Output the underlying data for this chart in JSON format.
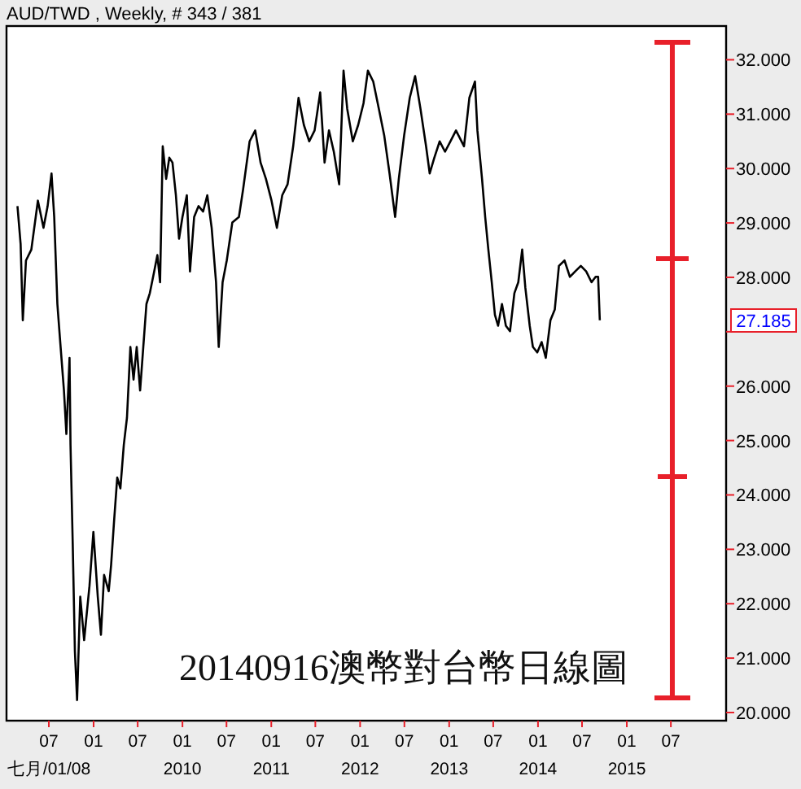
{
  "chart_data": {
    "type": "line",
    "title": "AUD/TWD , Weekly, # 343 / 381",
    "annotations": [
      "20140916澳幣對台幣日線圖",
      "27.185"
    ],
    "xlim": [
      "2008-01-09",
      "2016-02-13"
    ],
    "xticks": [
      {
        "value": "2008-07-01",
        "label": "07\n七月/01/08"
      },
      {
        "value": "2009-01-01",
        "label": "01"
      },
      {
        "value": "2009-07-01",
        "label": "07"
      },
      {
        "value": "2010-01-01",
        "label": "01\n2010"
      },
      {
        "value": "2010-07-01",
        "label": "07"
      },
      {
        "value": "2011-01-01",
        "label": "01\n2011"
      },
      {
        "value": "2011-07-01",
        "label": "07"
      },
      {
        "value": "2012-01-01",
        "label": "01\n2012"
      },
      {
        "value": "2012-07-01",
        "label": "07"
      },
      {
        "value": "2013-01-01",
        "label": "01\n2013"
      },
      {
        "value": "2013-07-01",
        "label": "07"
      },
      {
        "value": "2014-01-01",
        "label": "01\n2014"
      },
      {
        "value": "2014-07-01",
        "label": "07"
      },
      {
        "value": "2015-01-01",
        "label": "01\n2015"
      },
      {
        "value": "2015-07-01",
        "label": "07"
      }
    ],
    "ylim": [
      19.85,
      32.62
    ],
    "yticks": [
      {
        "value": 20,
        "label": "20.000"
      },
      {
        "value": 21,
        "label": "21.000"
      },
      {
        "value": 22,
        "label": "22.000"
      },
      {
        "value": 23,
        "label": "23.000"
      },
      {
        "value": 24,
        "label": "24.000"
      },
      {
        "value": 25,
        "label": "25.000"
      },
      {
        "value": 26,
        "label": "26.000"
      },
      {
        "value": 27,
        "label": null
      },
      {
        "value": 28,
        "label": "28.000"
      },
      {
        "value": 29,
        "label": "29.000"
      },
      {
        "value": 30,
        "label": "30.000"
      },
      {
        "value": 31,
        "label": "31.000"
      },
      {
        "value": 32,
        "label": "32.000"
      }
    ],
    "series": [
      {
        "type": "line",
        "color": "#e8202a",
        "x": [
          "2015-07-07",
          "2015-07-07",
          "2015-07-07",
          "2015-07-07"
        ],
        "values": [
          20.26,
          24.32,
          28.33,
          32.31
        ]
      },
      {
        "color": "#000000",
        "x": [
          "2008-02-23",
          "2008-03-07",
          "2008-03-16",
          "2008-03-29",
          "2008-04-20",
          "2008-05-17",
          "2008-06-09",
          "2008-06-26",
          "2008-07-12",
          "2008-07-23",
          "2008-08-05",
          "2008-08-15",
          "2008-09-01",
          "2008-09-11",
          "2008-09-24",
          "2008-09-28",
          "2008-10-07",
          "2008-10-16",
          "2008-10-25",
          "2008-11-07",
          "2008-11-23",
          "2008-12-15",
          "2008-12-31",
          "2009-01-18",
          "2009-01-31",
          "2009-02-13",
          "2009-03-04",
          "2009-03-14",
          "2009-03-26",
          "2009-04-08",
          "2009-04-21",
          "2009-05-05",
          "2009-05-18",
          "2009-06-01",
          "2009-06-14",
          "2009-06-27",
          "2009-07-11",
          "2009-07-24",
          "2009-08-06",
          "2009-08-20",
          "2009-09-07",
          "2009-09-20",
          "2009-10-01",
          "2009-10-12",
          "2009-10-26",
          "2009-11-08",
          "2009-11-21",
          "2009-12-05",
          "2009-12-18",
          "2010-01-01",
          "2010-01-19",
          "2010-02-01",
          "2010-02-18",
          "2010-03-08",
          "2010-03-27",
          "2010-04-13",
          "2010-05-01",
          "2010-05-19",
          "2010-05-30",
          "2010-06-15",
          "2010-07-02",
          "2010-07-25",
          "2010-08-21",
          "2010-09-07",
          "2010-10-04",
          "2010-10-27",
          "2010-11-18",
          "2010-12-10",
          "2011-01-02",
          "2011-01-24",
          "2011-02-15",
          "2011-03-09",
          "2011-04-01",
          "2011-04-23",
          "2011-05-15",
          "2011-06-06",
          "2011-06-28",
          "2011-07-21",
          "2011-08-08",
          "2011-08-26",
          "2011-09-15",
          "2011-10-07",
          "2011-10-25",
          "2011-11-09",
          "2011-12-02",
          "2011-12-24",
          "2012-01-15",
          "2012-02-02",
          "2012-02-24",
          "2012-03-18",
          "2012-04-09",
          "2012-05-01",
          "2012-05-24",
          "2012-06-08",
          "2012-06-30",
          "2012-07-23",
          "2012-08-14",
          "2012-09-05",
          "2012-09-28",
          "2012-10-13",
          "2012-11-01",
          "2012-11-23",
          "2012-12-15",
          "2013-01-06",
          "2013-01-29",
          "2013-03-03",
          "2013-03-25",
          "2013-04-17",
          "2013-04-27",
          "2013-05-16",
          "2013-05-29",
          "2013-06-11",
          "2013-06-25",
          "2013-07-08",
          "2013-07-21",
          "2013-08-06",
          "2013-08-22",
          "2013-09-08",
          "2013-09-26",
          "2013-10-12",
          "2013-10-28",
          "2013-11-10",
          "2013-11-28",
          "2013-12-11",
          "2013-12-29",
          "2014-01-16",
          "2014-02-02",
          "2014-02-21",
          "2014-03-11",
          "2014-03-28",
          "2014-04-20",
          "2014-05-12",
          "2014-06-03",
          "2014-06-26",
          "2014-07-18",
          "2014-08-09",
          "2014-08-26",
          "2014-09-05",
          "2014-09-12"
        ],
        "values": [
          29.31,
          28.61,
          27.21,
          28.31,
          28.51,
          29.41,
          28.91,
          29.31,
          29.91,
          29.11,
          27.51,
          26.91,
          25.92,
          25.12,
          26.52,
          24.92,
          23.12,
          21.13,
          20.23,
          22.13,
          21.33,
          22.33,
          23.32,
          22.13,
          21.43,
          22.53,
          22.23,
          22.72,
          23.52,
          24.32,
          24.12,
          24.92,
          25.42,
          26.72,
          26.12,
          26.72,
          25.92,
          26.72,
          27.51,
          27.71,
          28.11,
          28.41,
          27.91,
          30.41,
          29.81,
          30.2,
          30.11,
          29.51,
          28.71,
          29.11,
          29.51,
          28.11,
          29.11,
          29.31,
          29.21,
          29.51,
          28.91,
          27.91,
          26.72,
          27.91,
          28.31,
          29.01,
          29.11,
          29.61,
          30.5,
          30.7,
          30.11,
          29.81,
          29.41,
          28.91,
          29.51,
          29.71,
          30.41,
          31.3,
          30.8,
          30.5,
          30.7,
          31.4,
          30.11,
          30.7,
          30.31,
          29.71,
          31.8,
          31.1,
          30.5,
          30.8,
          31.2,
          31.8,
          31.6,
          31.1,
          30.61,
          29.91,
          29.11,
          29.81,
          30.61,
          31.3,
          31.7,
          31.1,
          30.41,
          29.91,
          30.2,
          30.5,
          30.31,
          30.5,
          30.7,
          30.41,
          31.3,
          31.6,
          30.7,
          29.81,
          29.11,
          28.51,
          27.91,
          27.31,
          27.11,
          27.51,
          27.11,
          27.01,
          27.71,
          27.91,
          28.51,
          27.81,
          27.11,
          26.72,
          26.62,
          26.81,
          26.52,
          27.21,
          27.41,
          28.21,
          28.31,
          28.01,
          28.11,
          28.21,
          28.11,
          27.91,
          28.01,
          28.01,
          27.21
        ]
      }
    ]
  }
}
